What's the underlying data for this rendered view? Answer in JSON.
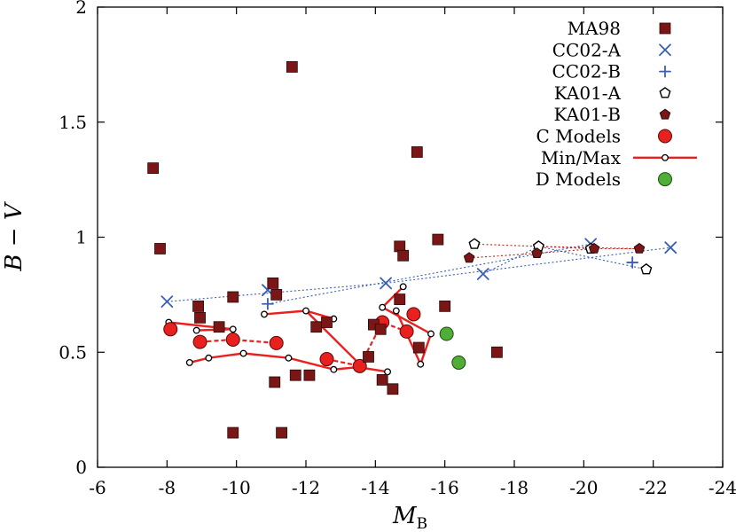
{
  "chart_data": {
    "type": "scatter",
    "xlabel": "M",
    "xlabel_sub": "B",
    "ylabel": "B − V",
    "xlim": [
      -6,
      -24
    ],
    "ylim": [
      0,
      2
    ],
    "xticks": [
      -6,
      -8,
      -10,
      -12,
      -14,
      -16,
      -18,
      -20,
      -22,
      -24
    ],
    "yticks": [
      0,
      0.5,
      1,
      1.5,
      2
    ],
    "xtick_labels": [
      "-6",
      "-8",
      "-10",
      "-12",
      "-14",
      "-16",
      "-18",
      "-20",
      "-22",
      "-24"
    ],
    "ytick_labels": [
      "0",
      "0.5",
      "1",
      "1.5",
      "2"
    ],
    "legend_position": "top-right",
    "colors": {
      "ma98": "#7a1616",
      "blue": "#3a5fb3",
      "red": "#e8201e",
      "green": "#4fae36"
    },
    "series": [
      {
        "name": "MA98",
        "marker": "square",
        "points": [
          [
            -7.6,
            1.3
          ],
          [
            -7.8,
            0.95
          ],
          [
            -8.9,
            0.7
          ],
          [
            -8.95,
            0.65
          ],
          [
            -9.5,
            0.61
          ],
          [
            -9.9,
            0.74
          ],
          [
            -9.9,
            0.15
          ],
          [
            -11.05,
            0.8
          ],
          [
            -11.15,
            0.75
          ],
          [
            -11.1,
            0.37
          ],
          [
            -11.3,
            0.15
          ],
          [
            -11.6,
            1.74
          ],
          [
            -11.7,
            0.4
          ],
          [
            -12.1,
            0.4
          ],
          [
            -12.3,
            0.61
          ],
          [
            -12.6,
            0.63
          ],
          [
            -13.8,
            0.48
          ],
          [
            -13.95,
            0.62
          ],
          [
            -14.15,
            0.6
          ],
          [
            -14.2,
            0.38
          ],
          [
            -14.5,
            0.34
          ],
          [
            -14.7,
            0.96
          ],
          [
            -14.7,
            0.73
          ],
          [
            -14.8,
            0.92
          ],
          [
            -15.2,
            1.37
          ],
          [
            -15.25,
            0.52
          ],
          [
            -15.8,
            0.99
          ],
          [
            -16.0,
            0.7
          ],
          [
            -17.5,
            0.5
          ]
        ]
      },
      {
        "name": "CC02-A",
        "marker": "x",
        "points": [
          [
            -8.0,
            0.72
          ],
          [
            -10.9,
            0.77
          ],
          [
            -14.3,
            0.8
          ],
          [
            -17.1,
            0.84
          ],
          [
            -20.2,
            0.97
          ],
          [
            -22.5,
            0.955
          ]
        ]
      },
      {
        "name": "CC02-B",
        "marker": "plus",
        "points": [
          [
            -10.9,
            0.71
          ],
          [
            -21.4,
            0.89
          ]
        ]
      },
      {
        "name": "KA01-A",
        "marker": "open-pentagon",
        "points": [
          [
            -16.85,
            0.97
          ],
          [
            -18.7,
            0.96
          ],
          [
            -20.2,
            0.95
          ],
          [
            -21.8,
            0.86
          ]
        ]
      },
      {
        "name": "KA01-B",
        "marker": "filled-pentagon",
        "points": [
          [
            -16.7,
            0.91
          ],
          [
            -18.65,
            0.93
          ],
          [
            -20.3,
            0.95
          ],
          [
            -21.6,
            0.95
          ]
        ]
      },
      {
        "name": "C Models",
        "marker": "red-circle",
        "points": [
          [
            -8.1,
            0.6
          ],
          [
            -8.95,
            0.545
          ],
          [
            -9.9,
            0.555
          ],
          [
            -11.15,
            0.54
          ],
          [
            -12.6,
            0.47
          ],
          [
            -13.55,
            0.44
          ],
          [
            -14.2,
            0.63
          ],
          [
            -14.9,
            0.59
          ],
          [
            -15.1,
            0.665
          ]
        ]
      },
      {
        "name": "Min/Max",
        "marker": "small-circle-line",
        "lines": [
          [
            [
              -8.05,
              0.63
            ],
            [
              -9.9,
              0.6
            ]
          ],
          [
            [
              -8.85,
              0.595
            ],
            [
              -9.9,
              0.6
            ]
          ],
          [
            [
              -8.65,
              0.455
            ],
            [
              -9.2,
              0.475
            ],
            [
              -10.2,
              0.495
            ],
            [
              -11.5,
              0.475
            ],
            [
              -12.8,
              0.425
            ],
            [
              -13.5,
              0.435
            ],
            [
              -14.35,
              0.415
            ]
          ],
          [
            [
              -10.8,
              0.665
            ],
            [
              -12.0,
              0.68
            ],
            [
              -12.8,
              0.645
            ]
          ],
          [
            [
              -12.0,
              0.68
            ],
            [
              -13.6,
              0.44
            ]
          ],
          [
            [
              -14.2,
              0.695
            ],
            [
              -14.8,
              0.785
            ]
          ],
          [
            [
              -14.6,
              0.68
            ],
            [
              -15.3,
              0.448
            ],
            [
              -15.6,
              0.58
            ]
          ],
          [
            [
              -14.2,
              0.695
            ],
            [
              -15.6,
              0.58
            ]
          ]
        ],
        "points": [
          [
            -8.05,
            0.63
          ],
          [
            -8.85,
            0.595
          ],
          [
            -9.9,
            0.6
          ],
          [
            -8.65,
            0.455
          ],
          [
            -9.2,
            0.475
          ],
          [
            -10.2,
            0.495
          ],
          [
            -11.5,
            0.475
          ],
          [
            -12.8,
            0.425
          ],
          [
            -13.5,
            0.435
          ],
          [
            -14.35,
            0.415
          ],
          [
            -10.8,
            0.665
          ],
          [
            -12.0,
            0.68
          ],
          [
            -12.8,
            0.645
          ],
          [
            -14.2,
            0.695
          ],
          [
            -14.6,
            0.68
          ],
          [
            -14.8,
            0.785
          ],
          [
            -15.3,
            0.448
          ],
          [
            -15.6,
            0.58
          ]
        ]
      },
      {
        "name": "D Models",
        "marker": "green-circle",
        "points": [
          [
            -16.05,
            0.58
          ],
          [
            -16.4,
            0.455
          ]
        ]
      }
    ],
    "dotted_connectors": [
      {
        "color": "#3a5fb3",
        "points": [
          [
            -8.0,
            0.72
          ],
          [
            -14.3,
            0.8
          ],
          [
            -22.5,
            0.955
          ]
        ]
      },
      {
        "color": "#3a5fb3",
        "points": [
          [
            -10.9,
            0.71
          ],
          [
            -20.2,
            0.97
          ]
        ]
      },
      {
        "color": "#3a5fb3",
        "points": [
          [
            -17.1,
            0.84
          ],
          [
            -18.7,
            0.96
          ],
          [
            -21.8,
            0.86
          ]
        ]
      },
      {
        "color": "#c22020",
        "points": [
          [
            -16.85,
            0.97
          ],
          [
            -18.7,
            0.96
          ],
          [
            -21.6,
            0.95
          ]
        ]
      },
      {
        "color": "#c22020",
        "points": [
          [
            -16.7,
            0.91
          ],
          [
            -18.65,
            0.93
          ],
          [
            -20.3,
            0.95
          ],
          [
            -21.6,
            0.95
          ]
        ]
      },
      {
        "color": "#c22020",
        "points": [
          [
            -18.7,
            0.96
          ],
          [
            -20.2,
            0.95
          ]
        ]
      }
    ],
    "dashed_model_lines": [
      {
        "points": [
          [
            -8.95,
            0.545
          ],
          [
            -9.9,
            0.555
          ],
          [
            -11.15,
            0.54
          ]
        ]
      },
      {
        "points": [
          [
            -12.6,
            0.47
          ],
          [
            -13.55,
            0.44
          ],
          [
            -14.2,
            0.63
          ],
          [
            -14.9,
            0.59
          ]
        ]
      }
    ]
  }
}
